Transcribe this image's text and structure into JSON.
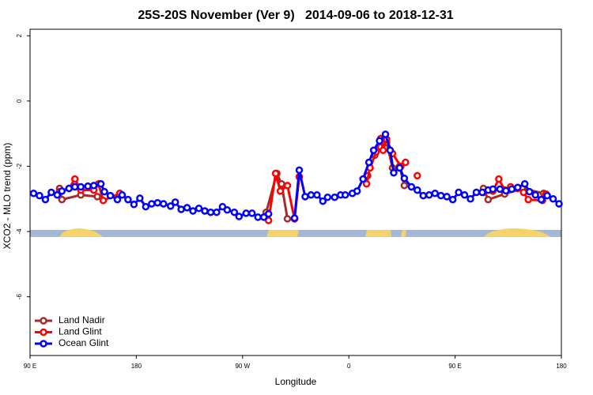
{
  "chart_data": {
    "type": "line",
    "title": "25S-20S November (Ver 9)   2014-09-06 to 2018-12-31",
    "xlabel": "Longitude",
    "ylabel": "XCO2 - MLO trend (ppm)",
    "xlim": [
      90,
      540
    ],
    "ylim": [
      -7.8,
      2.2
    ],
    "xticks": [
      {
        "value": 90,
        "label": "90 E"
      },
      {
        "value": 180,
        "label": "180"
      },
      {
        "value": 270,
        "label": "90 W"
      },
      {
        "value": 360,
        "label": "0"
      },
      {
        "value": 450,
        "label": "90 E"
      },
      {
        "value": 540,
        "label": "180"
      }
    ],
    "yticks": [
      -6,
      -4,
      -2,
      0,
      2
    ],
    "legend": "bottom-left",
    "series": [
      {
        "name": "Land Nadir",
        "color": "#a52a2a",
        "x": [
          115,
          117,
          133,
          147,
          200,
          290,
          299,
          303,
          308,
          314,
          340,
          376,
          382,
          387,
          392,
          397,
          403,
          407,
          440,
          474,
          478,
          492,
          507,
          525
        ],
        "values": [
          -2.68,
          -3.02,
          -2.88,
          -2.93,
          null,
          -3.41,
          -2.22,
          -2.54,
          -3.61,
          -3.61,
          null,
          -2.29,
          -1.66,
          -1.41,
          -1.27,
          -2.05,
          -2.0,
          -2.59,
          null,
          -2.68,
          -3.02,
          -2.85,
          -2.68,
          -2.83
        ]
      },
      {
        "name": "Land Glint",
        "color": "#ff0000",
        "x": [
          115,
          123,
          128,
          133,
          144,
          148,
          152,
          166,
          230,
          292,
          298,
          302,
          308,
          314,
          318,
          340,
          375,
          378,
          383,
          387,
          389,
          392,
          397,
          404,
          408,
          413,
          418,
          450,
          474,
          482,
          487,
          492,
          497,
          503,
          508,
          512,
          524,
          527
        ],
        "values": [
          -2.78,
          -2.68,
          -2.39,
          -2.73,
          -2.73,
          -2.54,
          -3.05,
          -2.83,
          null,
          -3.66,
          -2.22,
          -2.76,
          -2.59,
          -3.61,
          -2.32,
          null,
          -2.54,
          -2.05,
          -1.56,
          -1.15,
          -1.51,
          -1.17,
          -1.61,
          -2.0,
          -1.88,
          null,
          -2.29,
          null,
          -2.8,
          -2.76,
          -2.39,
          -2.73,
          -2.63,
          -2.68,
          -2.8,
          -3.02,
          -3.05,
          -2.85
        ]
      },
      {
        "name": "Ocean Glint",
        "color": "#0000ff",
        "x": [
          93,
          98,
          103,
          108,
          113,
          117,
          123,
          128,
          133,
          139,
          144,
          150,
          153,
          158,
          164,
          168,
          173,
          178,
          183,
          188,
          193,
          198,
          203,
          209,
          213,
          218,
          223,
          228,
          233,
          238,
          243,
          248,
          253,
          257,
          263,
          267,
          273,
          278,
          283,
          288,
          292,
          303,
          314,
          318,
          323,
          328,
          333,
          338,
          342,
          348,
          353,
          357,
          363,
          367,
          372,
          377,
          381,
          386,
          391,
          395,
          398,
          403,
          407,
          413,
          418,
          423,
          428,
          433,
          438,
          443,
          448,
          453,
          458,
          463,
          468,
          473,
          478,
          482,
          488,
          493,
          498,
          503,
          509,
          513,
          518,
          523,
          528,
          533,
          538
        ],
        "values": [
          -2.83,
          -2.9,
          -3.02,
          -2.8,
          -2.88,
          -2.76,
          -2.68,
          -2.63,
          -2.63,
          -2.61,
          -2.59,
          -2.54,
          -2.78,
          -2.9,
          -3.02,
          -2.88,
          -3.02,
          -3.17,
          -2.98,
          -3.24,
          -3.15,
          -3.12,
          -3.15,
          -3.22,
          -3.1,
          -3.32,
          -3.27,
          -3.37,
          -3.29,
          -3.37,
          -3.41,
          -3.41,
          -3.24,
          -3.34,
          -3.41,
          -3.54,
          -3.44,
          -3.44,
          -3.56,
          -3.56,
          -3.46,
          null,
          -3.59,
          -2.12,
          -2.93,
          -2.88,
          -2.88,
          -3.07,
          -2.95,
          -2.95,
          -2.88,
          -2.88,
          -2.83,
          -2.76,
          -2.39,
          -1.88,
          -1.51,
          -1.22,
          -1.02,
          -1.51,
          -2.2,
          -2.05,
          -2.37,
          -2.63,
          -2.73,
          -2.9,
          -2.88,
          -2.83,
          -2.9,
          -2.93,
          -3.02,
          -2.8,
          -2.88,
          -3.0,
          -2.8,
          -2.8,
          -2.73,
          -2.7,
          -2.7,
          -2.75,
          -2.7,
          -2.65,
          -2.54,
          -2.78,
          -2.88,
          -3.02,
          -2.9,
          -3.0,
          -3.15
        ]
      }
    ]
  }
}
